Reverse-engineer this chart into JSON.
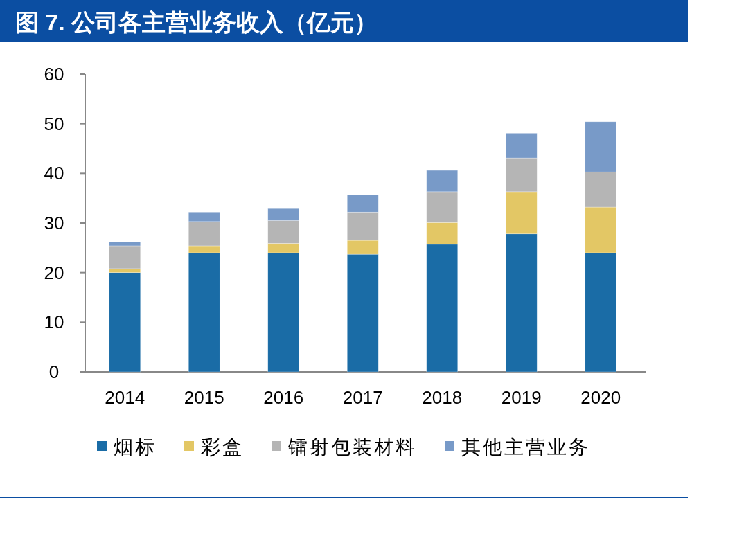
{
  "chart_data": {
    "type": "bar",
    "title": "图 7. 公司各主营业务收入（亿元）",
    "categories": [
      "2014",
      "2015",
      "2016",
      "2017",
      "2018",
      "2019",
      "2020"
    ],
    "stacked": true,
    "ylim": [
      0,
      60
    ],
    "yticks": [
      0,
      10,
      20,
      30,
      40,
      50,
      60
    ],
    "grid": false,
    "legend": "bottom",
    "series": [
      {
        "name": "烟标",
        "color": "#1a6ca6",
        "values": [
          20.0,
          24.0,
          24.0,
          23.7,
          25.7,
          27.8,
          24.0
        ]
      },
      {
        "name": "彩盒",
        "color": "#e3c765",
        "values": [
          0.8,
          1.4,
          1.9,
          2.8,
          4.4,
          8.5,
          9.2
        ]
      },
      {
        "name": "镭射包装材料",
        "color": "#b5b5b5",
        "values": [
          4.6,
          4.9,
          4.6,
          5.7,
          6.2,
          6.8,
          7.1
        ]
      },
      {
        "name": "其他主营业务",
        "color": "#789ac8",
        "values": [
          0.8,
          1.9,
          2.4,
          3.5,
          4.3,
          5.0,
          10.1
        ]
      }
    ]
  }
}
